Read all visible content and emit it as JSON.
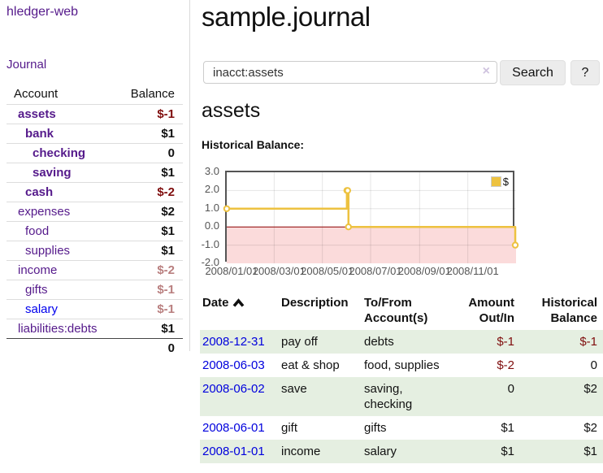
{
  "app": {
    "brand": "hledger-web"
  },
  "sidebar": {
    "journal_link": "Journal",
    "header": {
      "account": "Account",
      "balance": "Balance"
    },
    "accounts": [
      {
        "label": "assets",
        "depth": 1,
        "balance": "$-1"
      },
      {
        "label": "bank",
        "depth": 2,
        "balance": "$1"
      },
      {
        "label": "checking",
        "depth": 3,
        "balance": "0"
      },
      {
        "label": "saving",
        "depth": 3,
        "balance": "$1"
      },
      {
        "label": "cash",
        "depth": 2,
        "balance": "$-2"
      },
      {
        "label": "expenses",
        "depth": 1,
        "balance": "$2"
      },
      {
        "label": "food",
        "depth": 2,
        "balance": "$1"
      },
      {
        "label": "supplies",
        "depth": 2,
        "balance": "$1"
      },
      {
        "label": "income",
        "depth": 1,
        "balance": "$-2"
      },
      {
        "label": "gifts",
        "depth": 2,
        "balance": "$-1"
      },
      {
        "label": "salary",
        "depth": 2,
        "balance": "$-1"
      },
      {
        "label": "liabilities:debts",
        "depth": 1,
        "balance": "$1"
      }
    ],
    "total": "0"
  },
  "main": {
    "title": "sample.journal",
    "search": {
      "value": "inacct:assets",
      "clear_icon": "×",
      "button_label": "Search",
      "help_label": "?"
    },
    "account_heading": "assets",
    "chart_label": "Historical Balance:"
  },
  "chart_data": {
    "type": "line",
    "title": "Historical Balance",
    "series": [
      {
        "name": "$",
        "color": "#edc240",
        "step": "after",
        "points": [
          {
            "date": "2008-01-01",
            "day": 0,
            "value": 1
          },
          {
            "date": "2008-06-01",
            "day": 152,
            "value": 2
          },
          {
            "date": "2008-06-02",
            "day": 153,
            "value": 2
          },
          {
            "date": "2008-06-03",
            "day": 154,
            "value": 0
          },
          {
            "date": "2008-12-31",
            "day": 365,
            "value": -1
          }
        ]
      }
    ],
    "xlim_days": [
      0,
      366
    ],
    "ylim": [
      -2,
      3
    ],
    "y_ticks": [
      {
        "value": 3,
        "label": "3.0"
      },
      {
        "value": 2,
        "label": "2.0"
      },
      {
        "value": 1,
        "label": "1.0"
      },
      {
        "value": 0,
        "label": "0.0"
      },
      {
        "value": -1,
        "label": "-1.0"
      },
      {
        "value": -2,
        "label": "-2.0"
      }
    ],
    "x_ticks": [
      {
        "day": 0,
        "label": "2008/01/01"
      },
      {
        "day": 60,
        "label": "2008/03/01"
      },
      {
        "day": 121,
        "label": "2008/05/01"
      },
      {
        "day": 182,
        "label": "2008/07/01"
      },
      {
        "day": 244,
        "label": "2008/09/01"
      },
      {
        "day": 305,
        "label": "2008/11/01"
      }
    ],
    "legend": {
      "label": "$",
      "position": "top-right"
    },
    "grid": true,
    "below_zero_fill": "#fbdbdb",
    "zero_line_color": "#8b0000",
    "border_color": "#545454"
  },
  "register": {
    "headers": {
      "date": "Date",
      "description": "Description",
      "accounts": "To/From Account(s)",
      "amount": "Amount Out/In",
      "balance": "Historical Balance"
    },
    "rows": [
      {
        "date": "2008-12-31",
        "description": "pay off",
        "accounts": "debts",
        "amount": "$-1",
        "balance": "$-1"
      },
      {
        "date": "2008-06-03",
        "description": "eat & shop",
        "accounts": "food, supplies",
        "amount": "$-2",
        "balance": "0"
      },
      {
        "date": "2008-06-02",
        "description": "save",
        "accounts": "saving, checking",
        "amount": "0",
        "balance": "$2"
      },
      {
        "date": "2008-06-01",
        "description": "gift",
        "accounts": "gifts",
        "amount": "$1",
        "balance": "$2"
      },
      {
        "date": "2008-01-01",
        "description": "income",
        "accounts": "salary",
        "amount": "$1",
        "balance": "$1"
      }
    ]
  },
  "colors": {
    "link_purple": "#551a8b",
    "link_blue": "#0000ee",
    "date_link_blue": "#0000dd",
    "negative_strong": "#7f0d0d",
    "negative_muted": "#b97f7f",
    "row_stripe_green": "#e5efe1",
    "chart_line_gold": "#edc240"
  }
}
